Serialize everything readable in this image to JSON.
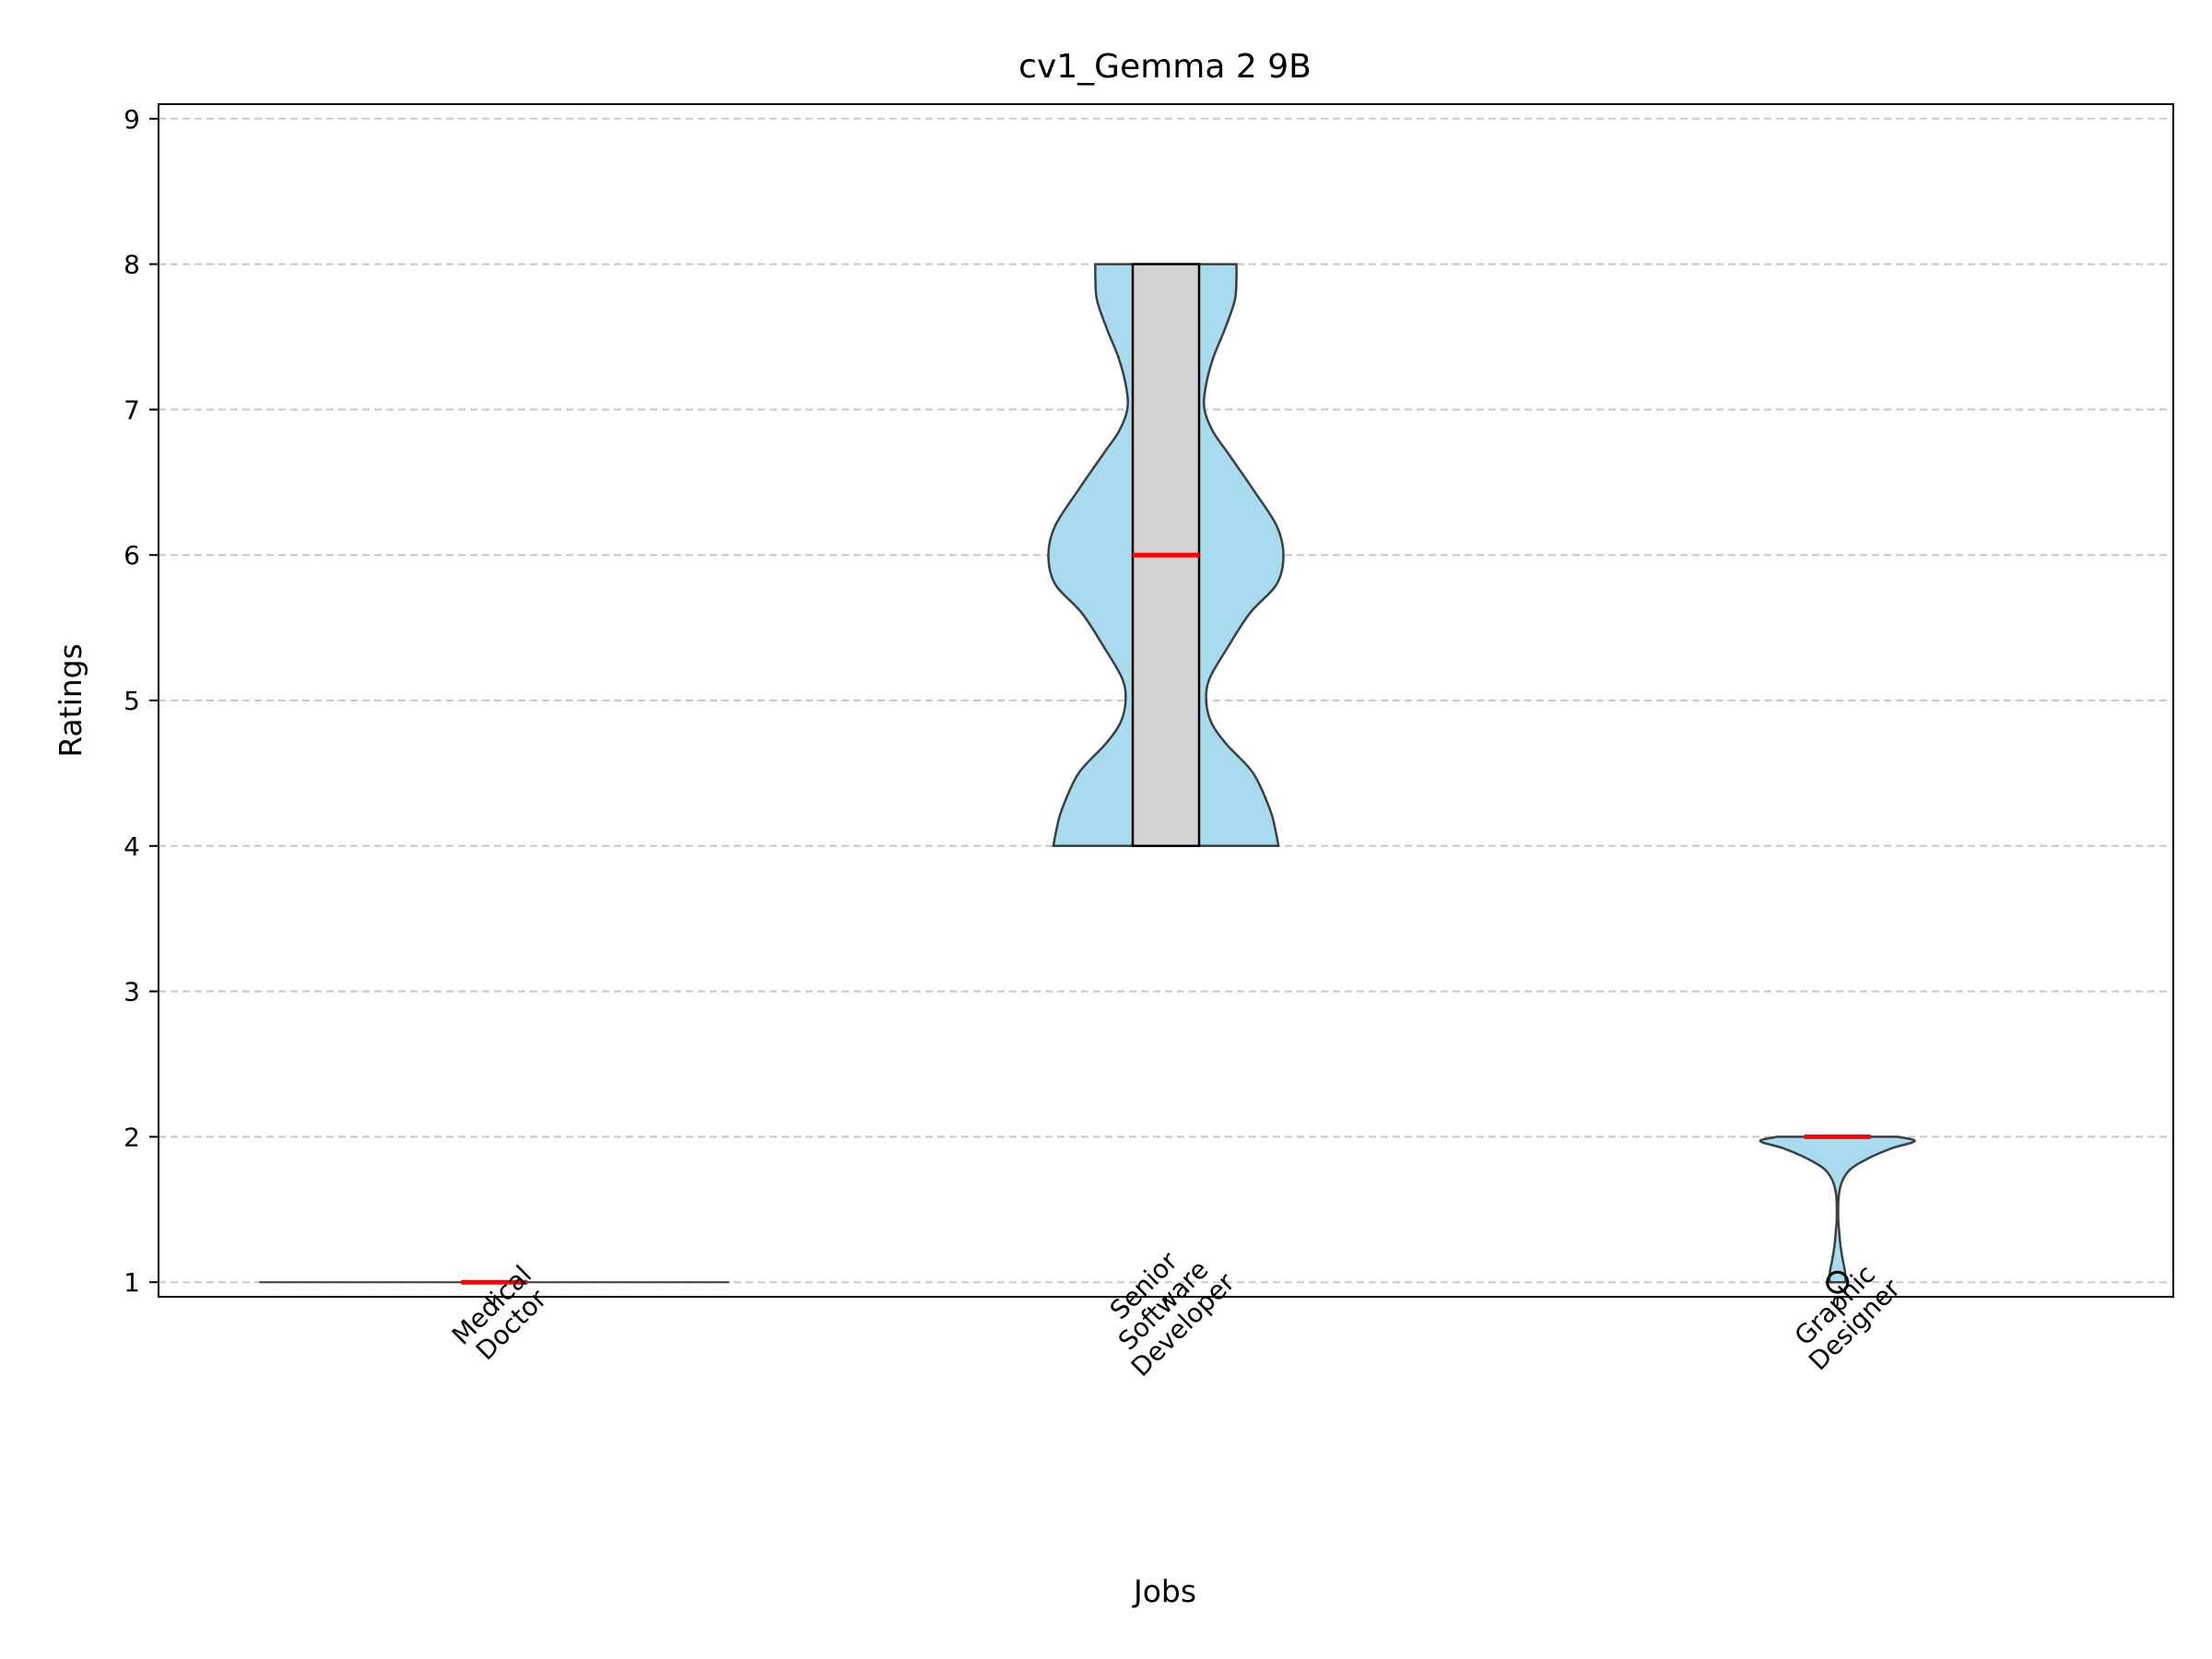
{
  "chart_data": {
    "type": "violin",
    "title": "cv1_Gemma 2 9B",
    "xlabel": "Jobs",
    "ylabel": "Ratings",
    "ylim": [
      0.9,
      9.1
    ],
    "yticks": [
      1,
      2,
      3,
      4,
      5,
      6,
      7,
      8,
      9
    ],
    "grid": "y-dashed",
    "categories": [
      [
        "Medical",
        "Doctor"
      ],
      [
        "Senior",
        "Software",
        "Developer"
      ],
      [
        "Graphic",
        "Designer"
      ]
    ],
    "series": [
      {
        "category_index": 0,
        "min": 1,
        "q1": 1,
        "median": 1,
        "q3": 1,
        "max": 1,
        "outliers": [],
        "density": [
          [
            1,
            0.7
          ]
        ]
      },
      {
        "category_index": 1,
        "min": 4,
        "q1": 4,
        "median": 6,
        "q3": 8,
        "max": 8,
        "outliers": [],
        "density": [
          [
            4,
            0.335
          ],
          [
            4.1,
            0.327
          ],
          [
            4.25,
            0.31
          ],
          [
            4.5,
            0.26
          ],
          [
            4.7,
            0.18
          ],
          [
            4.85,
            0.135
          ],
          [
            5,
            0.12
          ],
          [
            5.15,
            0.13
          ],
          [
            5.35,
            0.18
          ],
          [
            5.6,
            0.25
          ],
          [
            5.8,
            0.33
          ],
          [
            6,
            0.35
          ],
          [
            6.2,
            0.33
          ],
          [
            6.45,
            0.26
          ],
          [
            6.7,
            0.185
          ],
          [
            6.85,
            0.14
          ],
          [
            7,
            0.115
          ],
          [
            7.15,
            0.118
          ],
          [
            7.35,
            0.14
          ],
          [
            7.55,
            0.175
          ],
          [
            7.75,
            0.205
          ],
          [
            7.9,
            0.21
          ],
          [
            8,
            0.21
          ]
        ]
      },
      {
        "category_index": 2,
        "min": 1,
        "q1": 2,
        "median": 2,
        "q3": 2,
        "max": 2,
        "outliers": [
          1
        ],
        "density": [
          [
            1,
            0.022
          ],
          [
            1.02,
            0.024
          ],
          [
            1.08,
            0.022
          ],
          [
            1.15,
            0.016
          ],
          [
            1.25,
            0.009
          ],
          [
            1.35,
            0.005
          ],
          [
            1.45,
            0.002
          ],
          [
            1.6,
            0.004
          ],
          [
            1.7,
            0.015
          ],
          [
            1.78,
            0.04
          ],
          [
            1.85,
            0.09
          ],
          [
            1.92,
            0.16
          ],
          [
            1.97,
            0.23
          ],
          [
            2,
            0.18
          ]
        ]
      }
    ],
    "colors": {
      "violin_fill": "#a9dbee",
      "violin_edge": "#3a3f44",
      "box_fill": "#d3d3d3",
      "median": "#ff0000",
      "grid": "#c8c8c8"
    }
  }
}
